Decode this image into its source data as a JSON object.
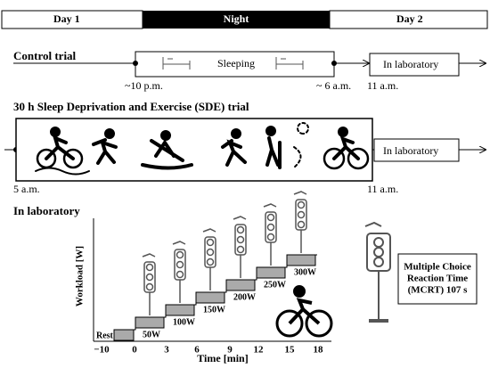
{
  "timeline": {
    "day1": "Day 1",
    "night": "Night",
    "day2": "Day 2"
  },
  "control": {
    "title": "Control  trial",
    "sleeping": "Sleeping",
    "lab": "In laboratory",
    "start": "~10 p.m.",
    "end": "~ 6 a.m.",
    "lab_time": "11 a.m."
  },
  "sde": {
    "title": "30 h Sleep Deprivation and Exercise (SDE) trial",
    "lab": "In laboratory",
    "start": "5 a.m.",
    "lab_time": "11 a.m."
  },
  "laboratory": {
    "title": "In laboratory",
    "y_label": "Workload [W]",
    "x_label": "Time [min]",
    "x_ticks": [
      "−10",
      "0",
      "3",
      "6",
      "9",
      "12",
      "15",
      "18"
    ],
    "steps": [
      "Rest",
      "50W",
      "100W",
      "150W",
      "200W",
      "250W",
      "300W"
    ],
    "mcrt": [
      "Multiple Choice",
      "Reaction Time",
      "(MCRT) 107 s"
    ]
  }
}
